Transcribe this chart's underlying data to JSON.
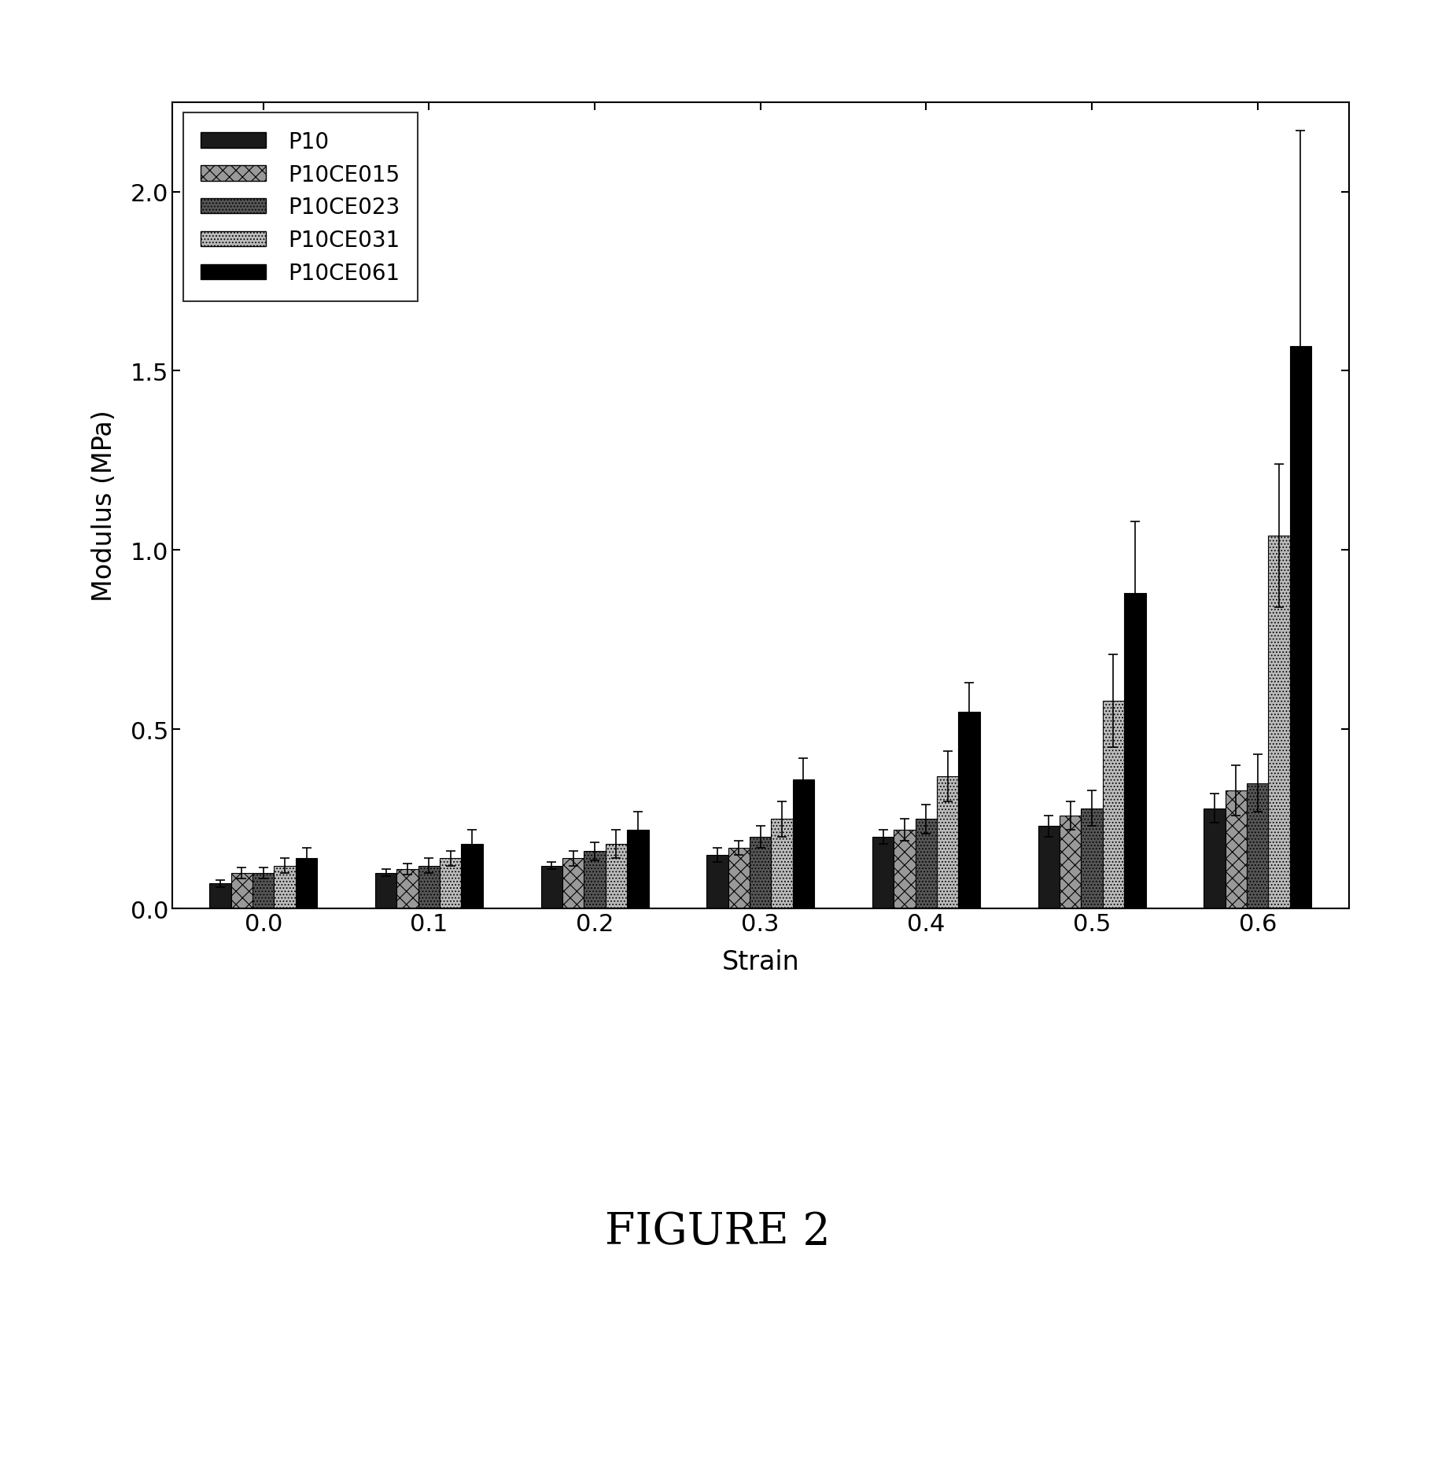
{
  "series_labels": [
    "P10",
    "P10CE015",
    "P10CE023",
    "P10CE031",
    "P10CE061"
  ],
  "strain_labels": [
    "0.0",
    "0.1",
    "0.2",
    "0.3",
    "0.4",
    "0.5",
    "0.6"
  ],
  "values": [
    [
      0.07,
      0.1,
      0.12,
      0.15,
      0.2,
      0.23,
      0.28
    ],
    [
      0.1,
      0.11,
      0.14,
      0.17,
      0.22,
      0.26,
      0.33
    ],
    [
      0.1,
      0.12,
      0.16,
      0.2,
      0.25,
      0.28,
      0.35
    ],
    [
      0.12,
      0.14,
      0.18,
      0.25,
      0.37,
      0.58,
      1.04
    ],
    [
      0.14,
      0.18,
      0.22,
      0.36,
      0.55,
      0.88,
      1.57
    ]
  ],
  "errors": [
    [
      0.01,
      0.01,
      0.01,
      0.02,
      0.02,
      0.03,
      0.04
    ],
    [
      0.015,
      0.015,
      0.02,
      0.02,
      0.03,
      0.04,
      0.07
    ],
    [
      0.015,
      0.02,
      0.025,
      0.03,
      0.04,
      0.05,
      0.08
    ],
    [
      0.02,
      0.02,
      0.04,
      0.05,
      0.07,
      0.13,
      0.2
    ],
    [
      0.03,
      0.04,
      0.05,
      0.06,
      0.08,
      0.2,
      0.6
    ]
  ],
  "xlabel": "Strain",
  "ylabel": "Modulus (MPa)",
  "ylim": [
    0,
    2.25
  ],
  "yticks": [
    0.0,
    0.5,
    1.0,
    1.5,
    2.0
  ],
  "figure_label": "FIGURE 2",
  "background_color": "#ffffff"
}
